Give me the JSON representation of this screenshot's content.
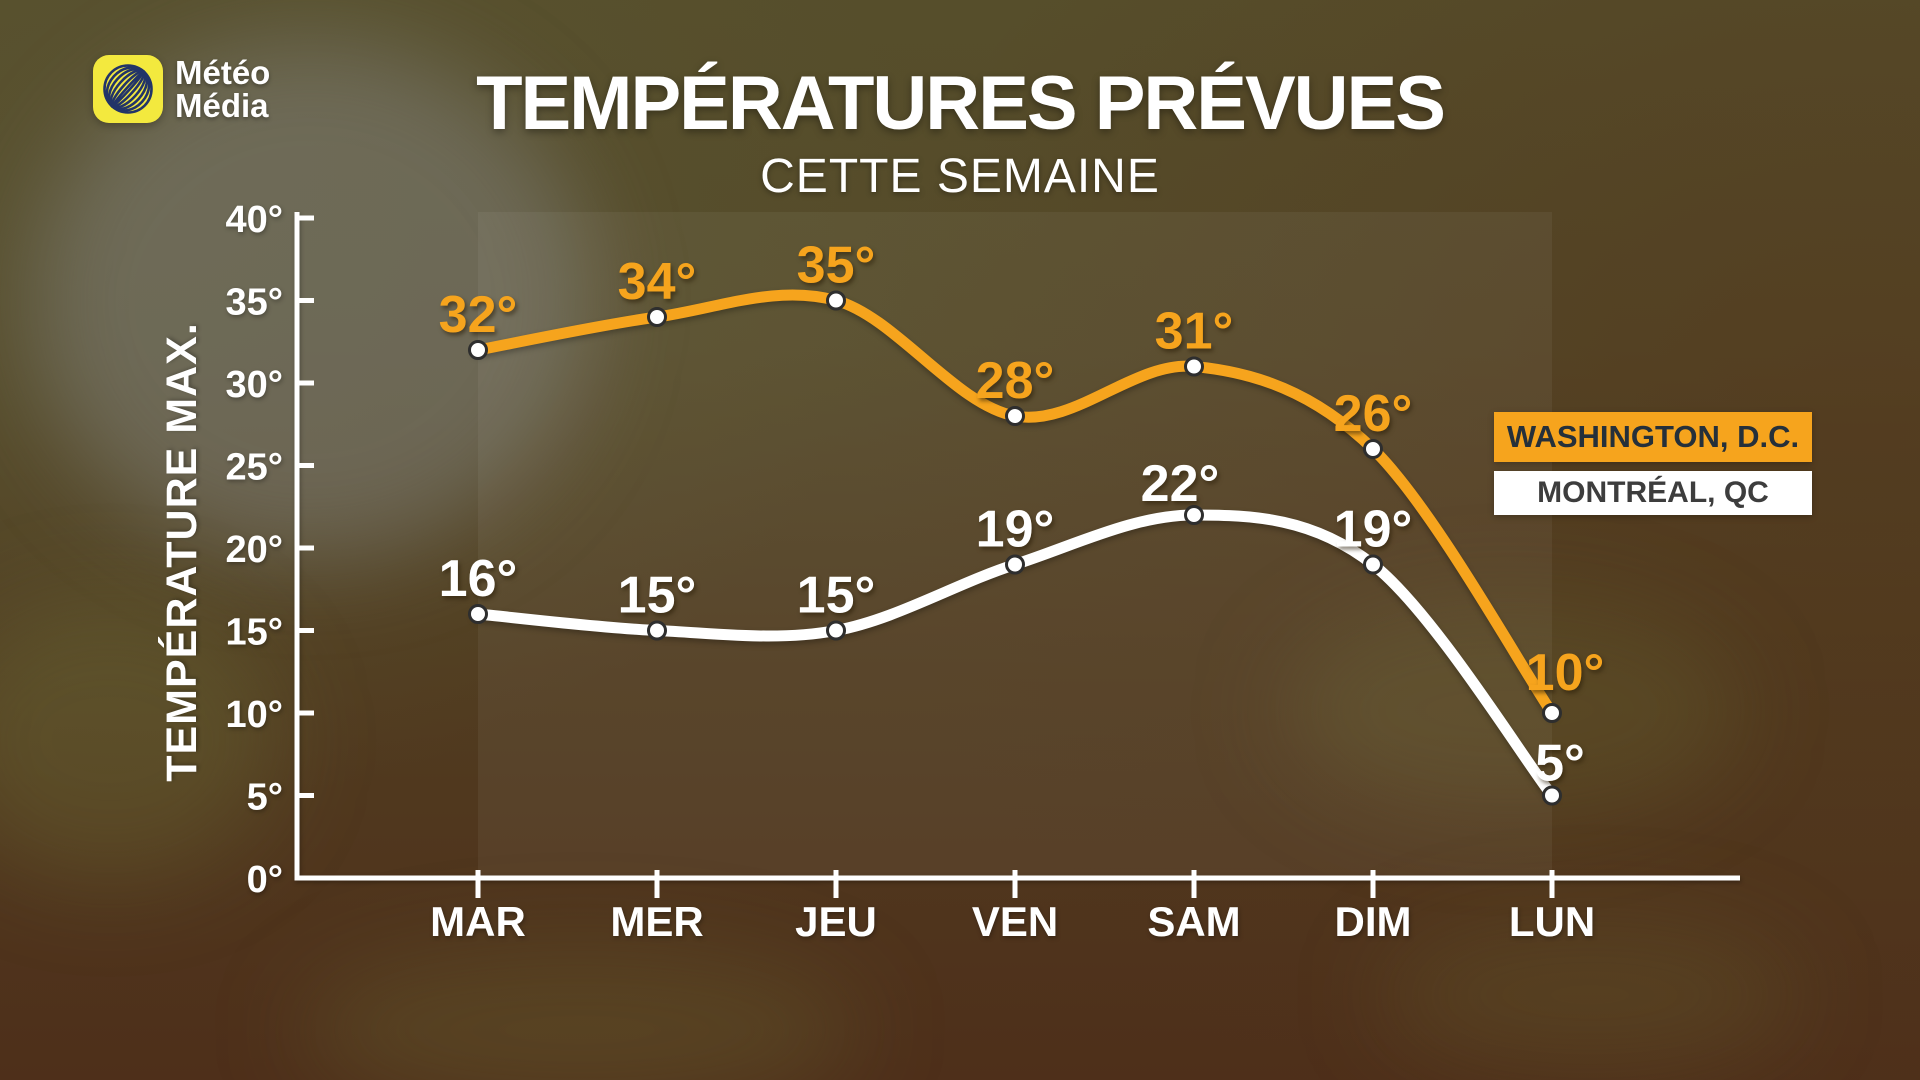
{
  "brand": {
    "line1": "Météo",
    "line2": "Média"
  },
  "header": {
    "title": "TEMPÉRATURES PRÉVUES",
    "subtitle": "CETTE SEMAINE"
  },
  "legend": [
    {
      "label": "WASHINGTON, D.C.",
      "bg": "#f6a41d",
      "text": "#25303a"
    },
    {
      "label": "MONTRÉAL, QC",
      "bg": "#ffffff",
      "text": "#3d3d3d"
    }
  ],
  "colors": {
    "washington_line": "#f6a41d",
    "montreal_line": "#ffffff",
    "axis": "#ffffff",
    "logo_yellow": "#f3e93e",
    "logo_navy": "#223468"
  },
  "chart_data": {
    "type": "line",
    "title": "TEMPÉRATURES PRÉVUES",
    "subtitle": "CETTE SEMAINE",
    "categories": [
      "MAR",
      "MER",
      "JEU",
      "VEN",
      "SAM",
      "DIM",
      "LUN"
    ],
    "series": [
      {
        "name": "WASHINGTON, D.C.",
        "color": "#f6a41d",
        "values": [
          32,
          34,
          35,
          28,
          31,
          26,
          10
        ]
      },
      {
        "name": "MONTRÉAL, QC",
        "color": "#ffffff",
        "values": [
          16,
          15,
          15,
          19,
          22,
          19,
          5
        ]
      }
    ],
    "xlabel": "",
    "ylabel": "TEMPÉRATURE MAX.",
    "ylim": [
      0,
      40
    ],
    "ytick_step": 5,
    "unit": "°",
    "grid": false,
    "legend_position": "right"
  }
}
